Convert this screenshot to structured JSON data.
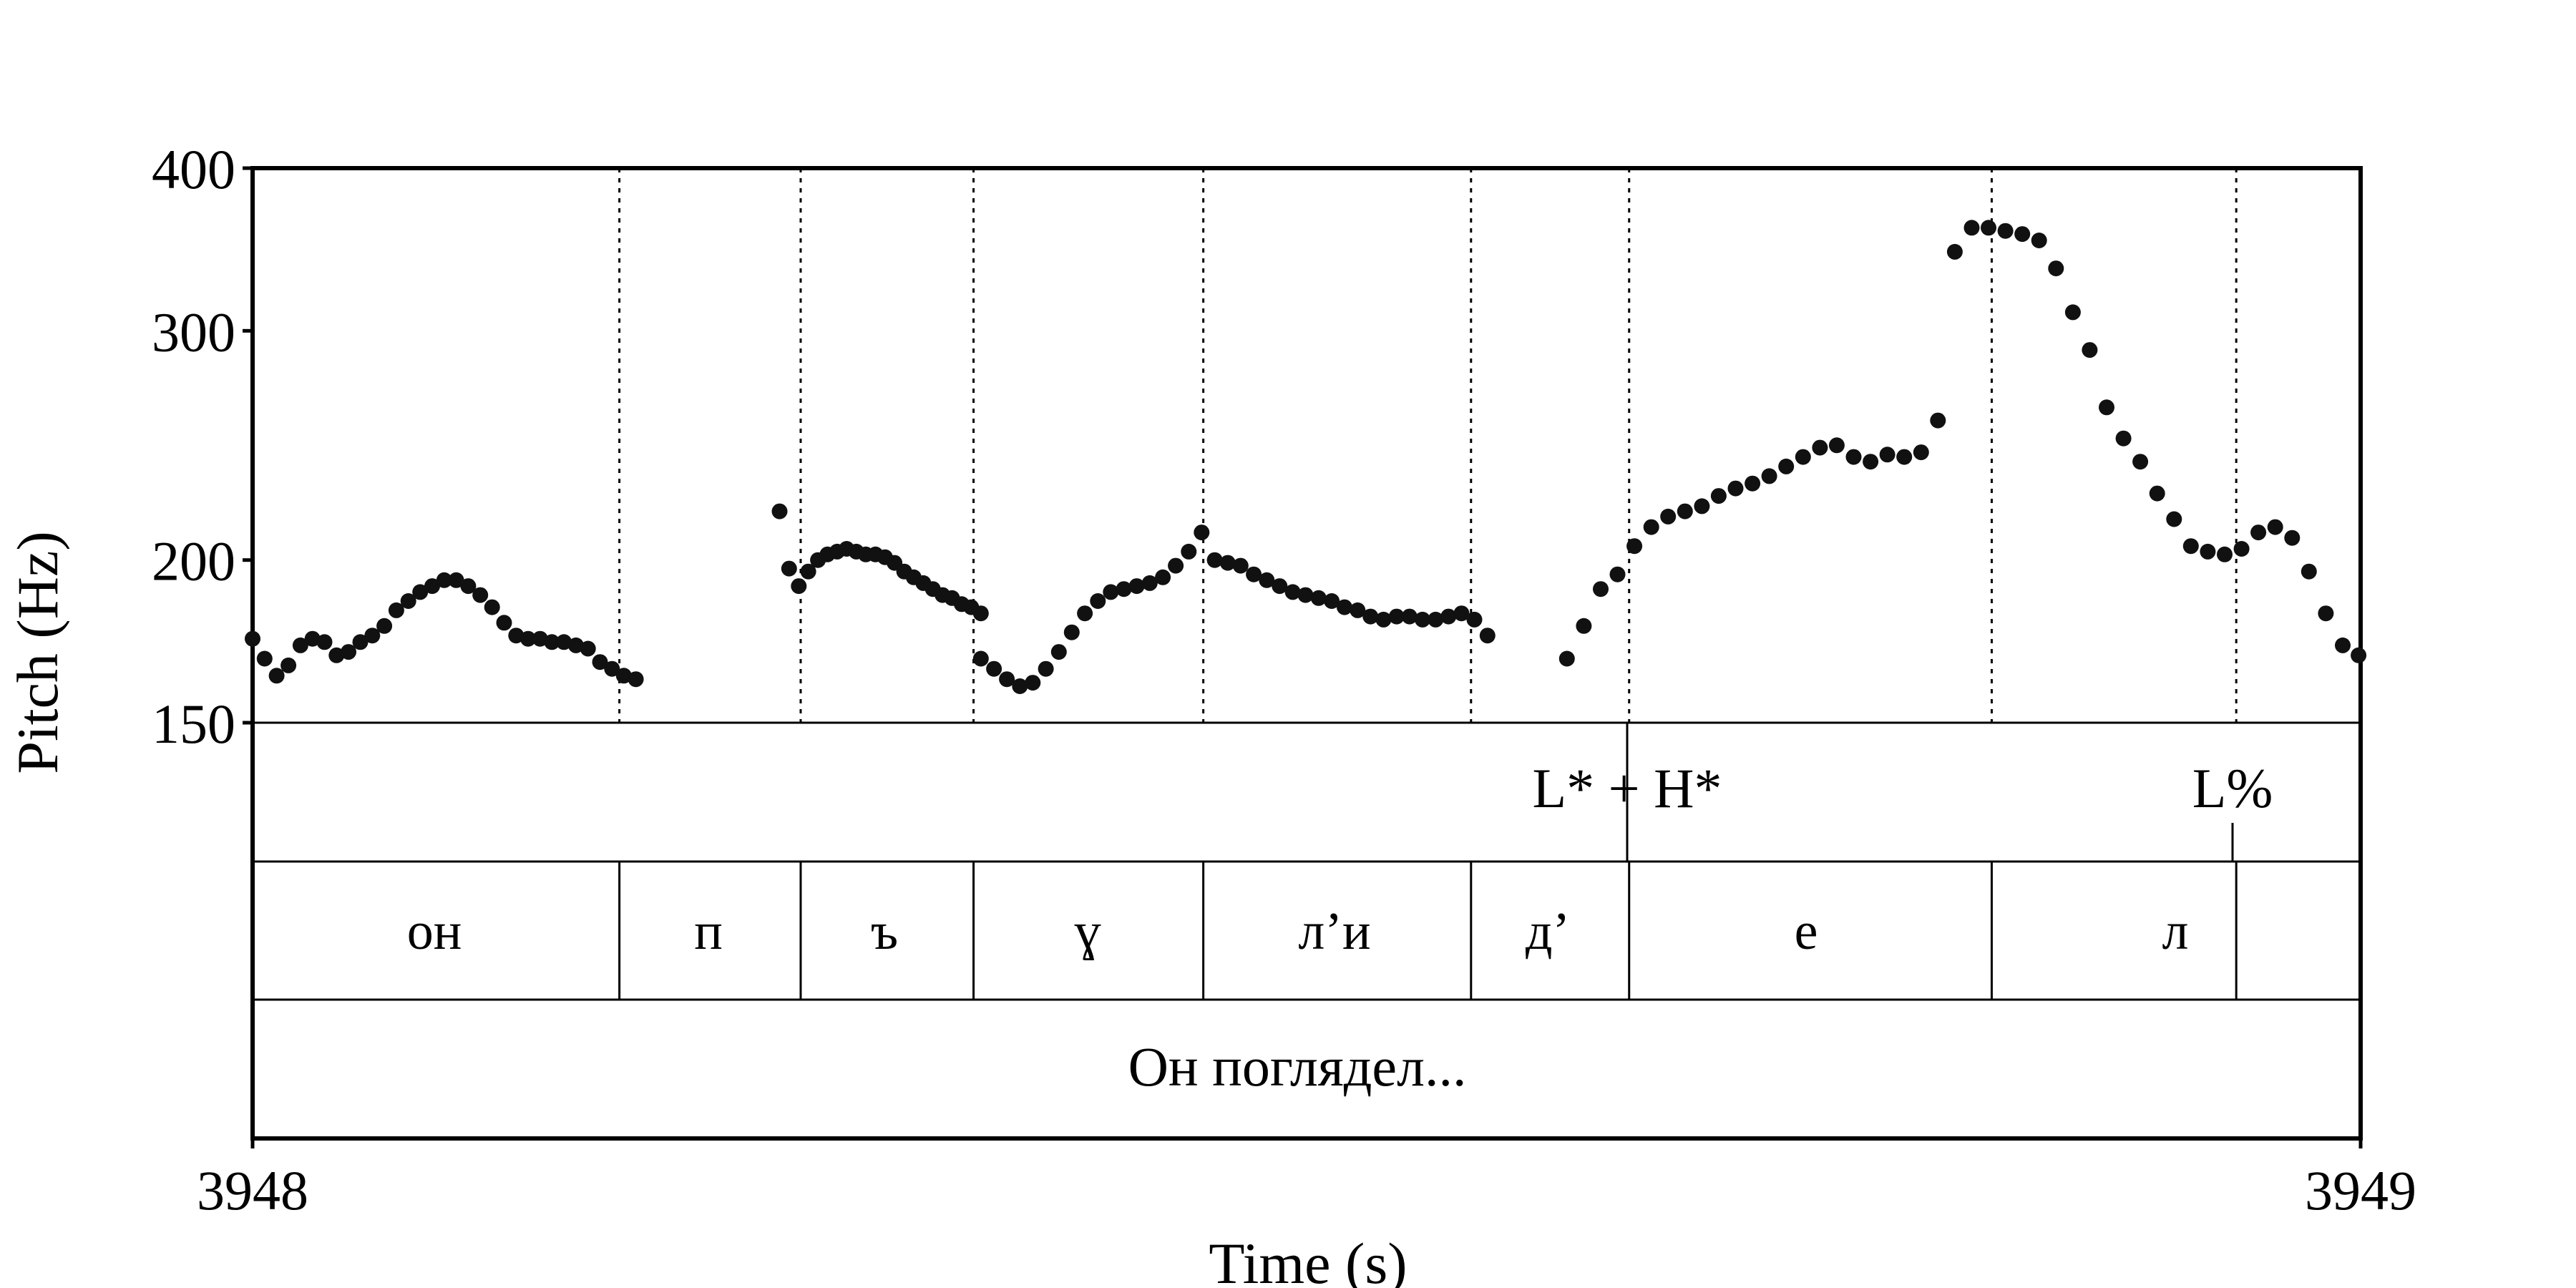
{
  "chart_data": {
    "type": "scatter",
    "xlabel": "Time (s)",
    "ylabel": "Pitch (Hz)",
    "xlim": [
      3948,
      3949
    ],
    "ylim": [
      150,
      400
    ],
    "y_scale": "log",
    "yticks": [
      150,
      200,
      300,
      400
    ],
    "xticks": [
      3948,
      3949
    ],
    "grid": false,
    "colors": {
      "points": "#111111",
      "frame": "#000000",
      "boundary": "#000000"
    },
    "pitch_series": [
      {
        "segment": 1,
        "x": [
          3948.0,
          3948.0057,
          3948.0114,
          3948.017,
          3948.0227,
          3948.0284,
          3948.0341,
          3948.0398,
          3948.0455,
          3948.0511,
          3948.0568,
          3948.0625,
          3948.0682,
          3948.0739,
          3948.0795,
          3948.0852,
          3948.0909,
          3948.0966,
          3948.1023,
          3948.108,
          3948.1136,
          3948.1193,
          3948.125,
          3948.1307,
          3948.1364,
          3948.142,
          3948.1477,
          3948.1534,
          3948.1591,
          3948.1648,
          3948.1705,
          3948.1761,
          3948.1818
        ],
        "y": [
          174,
          168,
          163,
          166,
          172,
          174,
          173,
          169,
          170,
          173,
          175,
          178,
          183,
          186,
          189,
          191,
          193,
          193,
          191,
          188,
          184,
          179,
          175,
          174,
          174,
          173,
          173,
          172,
          171,
          167,
          165,
          163,
          162
        ]
      },
      {
        "segment": 2,
        "x": [
          3948.25,
          3948.2545,
          3948.2591,
          3948.2636,
          3948.2682,
          3948.2727,
          3948.2773,
          3948.2818,
          3948.2864,
          3948.2909,
          3948.2955,
          3948.3,
          3948.3045,
          3948.3091,
          3948.3136,
          3948.3182,
          3948.3227,
          3948.3273,
          3948.3318,
          3948.3364,
          3948.3409,
          3948.3455
        ],
        "y": [
          218,
          197,
          191,
          196,
          200,
          202,
          203,
          204,
          203,
          202,
          202,
          201,
          199,
          196,
          194,
          192,
          190,
          188,
          187,
          185,
          184,
          182
        ]
      },
      {
        "segment": 3,
        "x": [
          3948.3455,
          3948.3517,
          3948.3578,
          3948.364,
          3948.3701,
          3948.3763,
          3948.3825,
          3948.3886,
          3948.3948,
          3948.401,
          3948.4071,
          3948.4133,
          3948.4194,
          3948.4256,
          3948.4318,
          3948.4379,
          3948.4441,
          3948.4502,
          3948.4564,
          3948.4626,
          3948.4687,
          3948.4749,
          3948.4811,
          3948.4872,
          3948.4934,
          3948.4995,
          3948.5057,
          3948.5119,
          3948.518,
          3948.5242,
          3948.5303,
          3948.5365,
          3948.5427,
          3948.5488,
          3948.555,
          3948.5612,
          3948.5673,
          3948.5735,
          3948.5796,
          3948.5858
        ],
        "y": [
          168,
          165,
          162,
          160,
          161,
          165,
          170,
          176,
          182,
          186,
          189,
          190,
          191,
          192,
          194,
          198,
          203,
          210,
          200,
          199,
          198,
          195,
          193,
          191,
          189,
          188,
          187,
          186,
          184,
          183,
          181,
          180,
          181,
          181,
          180,
          180,
          181,
          182,
          180,
          175
        ]
      },
      {
        "segment": 4,
        "x": [
          3948.6235,
          3948.6315,
          3948.6395,
          3948.6475,
          3948.6555,
          3948.6635,
          3948.6715,
          3948.6795,
          3948.6875,
          3948.6955,
          3948.7035,
          3948.7115,
          3948.7195,
          3948.7275,
          3948.7355,
          3948.7435,
          3948.7515,
          3948.7595,
          3948.7675,
          3948.7755,
          3948.7835,
          3948.7915,
          3948.7995,
          3948.8075,
          3948.8155,
          3948.8235,
          3948.8315,
          3948.8395,
          3948.8475,
          3948.8555,
          3948.8635,
          3948.8715,
          3948.8795,
          3948.8875,
          3948.8955,
          3948.9035,
          3948.9115,
          3948.9195,
          3948.9275,
          3948.9355,
          3948.9435,
          3948.9515,
          3948.9595,
          3948.9675,
          3948.9755,
          3948.9835,
          3948.9915,
          3948.999
        ],
        "y": [
          168,
          178,
          190,
          195,
          205,
          212,
          216,
          218,
          220,
          224,
          227,
          229,
          232,
          236,
          240,
          244,
          245,
          240,
          238,
          241,
          240,
          242,
          256,
          345,
          360,
          360,
          358,
          356,
          352,
          335,
          310,
          290,
          262,
          248,
          238,
          225,
          215,
          205,
          203,
          202,
          204,
          210,
          212,
          208,
          196,
          182,
          172,
          169
        ]
      }
    ]
  },
  "tiers": {
    "tones": {
      "labels": [
        "L* + H*",
        "L%"
      ]
    },
    "segments": {
      "labels": [
        "он",
        "п",
        "ъ",
        "ɣ",
        "л’и",
        "д’",
        "е",
        "л"
      ]
    },
    "words": {
      "labels": [
        "Он поглядел..."
      ]
    }
  },
  "boundaries_s": [
    3948.174,
    3948.26,
    3948.342,
    3948.451,
    3948.578,
    3948.653,
    3948.825,
    3948.941
  ]
}
